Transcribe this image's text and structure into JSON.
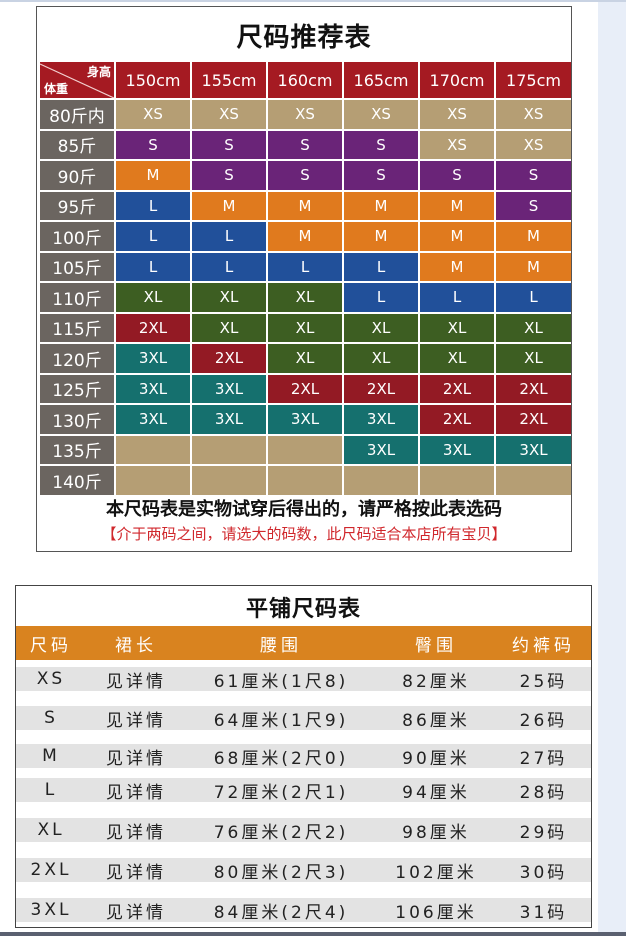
{
  "recommend_table": {
    "title": "尺码推荐表",
    "corner": {
      "height_label": "身高",
      "weight_label": "体重"
    },
    "heights": [
      "150cm",
      "155cm",
      "160cm",
      "165cm",
      "170cm",
      "175cm"
    ],
    "rows": [
      {
        "weight": "80斤内",
        "sizes": [
          "XS",
          "XS",
          "XS",
          "XS",
          "XS",
          "XS"
        ]
      },
      {
        "weight": "85斤",
        "sizes": [
          "S",
          "S",
          "S",
          "S",
          "XS",
          "XS"
        ]
      },
      {
        "weight": "90斤",
        "sizes": [
          "M",
          "S",
          "S",
          "S",
          "S",
          "S"
        ]
      },
      {
        "weight": "95斤",
        "sizes": [
          "L",
          "M",
          "M",
          "M",
          "M",
          "S"
        ]
      },
      {
        "weight": "100斤",
        "sizes": [
          "L",
          "L",
          "M",
          "M",
          "M",
          "M"
        ]
      },
      {
        "weight": "105斤",
        "sizes": [
          "L",
          "L",
          "L",
          "L",
          "M",
          "M"
        ]
      },
      {
        "weight": "110斤",
        "sizes": [
          "XL",
          "XL",
          "XL",
          "L",
          "L",
          "L"
        ]
      },
      {
        "weight": "115斤",
        "sizes": [
          "2XL",
          "XL",
          "XL",
          "XL",
          "XL",
          "XL"
        ]
      },
      {
        "weight": "120斤",
        "sizes": [
          "3XL",
          "2XL",
          "XL",
          "XL",
          "XL",
          "XL"
        ]
      },
      {
        "weight": "125斤",
        "sizes": [
          "3XL",
          "3XL",
          "2XL",
          "2XL",
          "2XL",
          "2XL"
        ]
      },
      {
        "weight": "130斤",
        "sizes": [
          "3XL",
          "3XL",
          "3XL",
          "3XL",
          "2XL",
          "2XL"
        ]
      },
      {
        "weight": "135斤",
        "sizes": [
          "",
          "",
          "",
          "3XL",
          "3XL",
          "3XL"
        ]
      },
      {
        "weight": "140斤",
        "sizes": [
          "",
          "",
          "",
          "",
          "",
          ""
        ]
      }
    ],
    "note_main": "本尺码表是实物试穿后得出的，请严格按此表选码",
    "note_sub": "【介于两码之间，请选大的码数，此尺码适合本店所有宝贝】",
    "size_colors": {
      "XS": "#b59e74",
      "S": "#6a2478",
      "M": "#e07a1e",
      "L": "#21509a",
      "XL": "#3d5e22",
      "2XL": "#931a24",
      "3XL": "#15706e",
      "": "#b59e74"
    },
    "header_color": "#a51a22",
    "weight_col_color": "#6b6560"
  },
  "flat_table": {
    "title": "平铺尺码表",
    "headers": [
      "尺码",
      "裙长",
      "腰围",
      "臀围",
      "约裤码"
    ],
    "header_color": "#d9831f",
    "rows": [
      [
        "XS",
        "见详情",
        "61厘米(1尺8)",
        "82厘米",
        "25码"
      ],
      [
        "S",
        "见详情",
        "64厘米(1尺9)",
        "86厘米",
        "26码"
      ],
      [
        "M",
        "见详情",
        "68厘米(2尺0)",
        "90厘米",
        "27码"
      ],
      [
        "L",
        "见详情",
        "72厘米(2尺1)",
        "94厘米",
        "28码"
      ],
      [
        "XL",
        "见详情",
        "76厘米(2尺2)",
        "98厘米",
        "29码"
      ],
      [
        "2XL",
        "见详情",
        "80厘米(2尺3)",
        "102厘米",
        "30码"
      ],
      [
        "3XL",
        "见详情",
        "84厘米(2尺4)",
        "106厘米",
        "31码"
      ]
    ]
  }
}
